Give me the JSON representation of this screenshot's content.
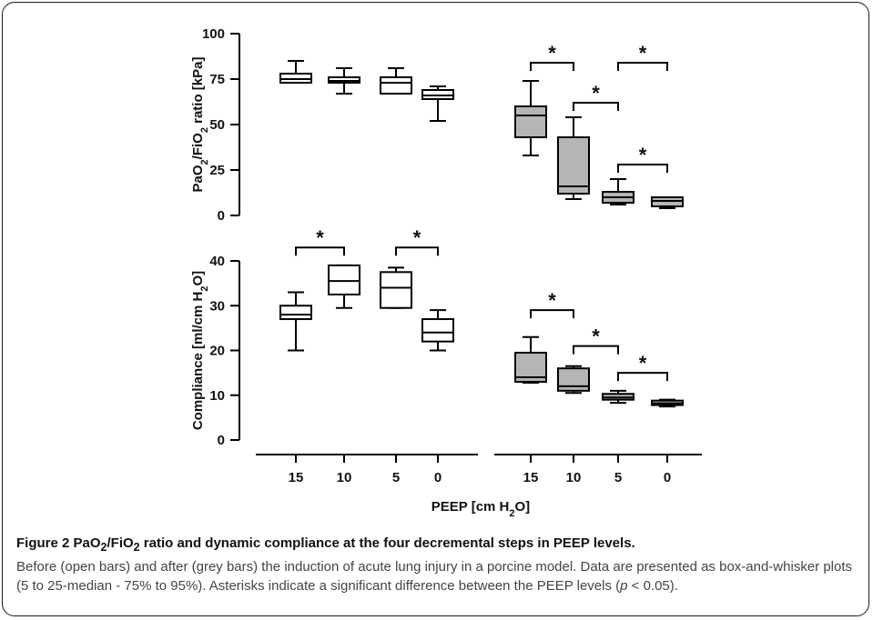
{
  "colors": {
    "open_box": "#ffffff",
    "grey_box": "#b5b5b5",
    "line": "#000000"
  },
  "caption": {
    "figure_label": "Figure 2",
    "title_pre": "PaO",
    "sub_2a": "2",
    "title_mid": "/FiO",
    "sub_2b": "2",
    "title_post": " ratio and dynamic compliance at the four decremental steps in PEEP levels.",
    "body_1": "Before (open bars) and after (grey bars) the induction of acute lung injury in a porcine model. Data are presented as box-and-whisker plots (5 to 25-median - 75% to 95%). Asterisks indicate a significant difference between the PEEP levels (",
    "body_p": "p",
    "body_2": " < 0.05)."
  },
  "chart_data": [
    {
      "type": "box",
      "ylabel": "PaO2/FiO2 ratio [kPa]",
      "ylabel_parts": [
        "PaO",
        "2",
        "/FiO",
        "2",
        " ratio [kPa]"
      ],
      "ylim": [
        0,
        100
      ],
      "yticks": [
        0,
        25,
        50,
        75,
        100
      ],
      "series": [
        {
          "group": "open",
          "categories": [
            "15",
            "10",
            "5",
            "0"
          ],
          "boxes": [
            {
              "whislo": 73,
              "q1": 73,
              "med": 75,
              "q3": 78,
              "whishi": 85
            },
            {
              "whislo": 67,
              "q1": 73,
              "med": 74,
              "q3": 76,
              "whishi": 81
            },
            {
              "whislo": 67,
              "q1": 67,
              "med": 73,
              "q3": 76,
              "whishi": 81
            },
            {
              "whislo": 52,
              "q1": 64,
              "med": 66,
              "q3": 69,
              "whishi": 71
            }
          ]
        },
        {
          "group": "grey",
          "categories": [
            "15",
            "10",
            "5",
            "0"
          ],
          "boxes": [
            {
              "whislo": 33,
              "q1": 43,
              "med": 55,
              "q3": 60,
              "whishi": 74
            },
            {
              "whislo": 9,
              "q1": 12,
              "med": 16,
              "q3": 43,
              "whishi": 54
            },
            {
              "whislo": 6,
              "q1": 7,
              "med": 10,
              "q3": 13,
              "whishi": 20
            },
            {
              "whislo": 4,
              "q1": 5,
              "med": 8,
              "q3": 10,
              "whishi": 10
            }
          ]
        }
      ],
      "significance": [
        {
          "from": 6,
          "to": 7,
          "y": 84,
          "label": "*"
        },
        {
          "from": 4,
          "to": 5,
          "y": 84,
          "label": "*"
        },
        {
          "from": 5,
          "to": 6,
          "y": 62,
          "label": "*"
        },
        {
          "from": 6,
          "to": 7,
          "y": 28,
          "label": "*"
        }
      ]
    },
    {
      "type": "box",
      "ylabel": "Compliance [ml/cm H2O]",
      "ylabel_parts": [
        "Compliance [ml/cm H",
        "2",
        "O]"
      ],
      "ylim": [
        0,
        40
      ],
      "yticks": [
        0,
        10,
        20,
        30,
        40
      ],
      "xlabel": "PEEP [cm H2O]",
      "xlabel_parts": [
        "PEEP [cm H",
        "2",
        "O]"
      ],
      "series": [
        {
          "group": "open",
          "categories": [
            "15",
            "10",
            "5",
            "0"
          ],
          "boxes": [
            {
              "whislo": 20,
              "q1": 27,
              "med": 28,
              "q3": 30,
              "whishi": 33
            },
            {
              "whislo": 29.5,
              "q1": 32.5,
              "med": 35.5,
              "q3": 39,
              "whishi": 39
            },
            {
              "whislo": 29.5,
              "q1": 29.5,
              "med": 34,
              "q3": 37.5,
              "whishi": 38.5
            },
            {
              "whislo": 20,
              "q1": 22,
              "med": 24,
              "q3": 27,
              "whishi": 29
            }
          ]
        },
        {
          "group": "grey",
          "categories": [
            "15",
            "10",
            "5",
            "0"
          ],
          "boxes": [
            {
              "whislo": 12.8,
              "q1": 13,
              "med": 14,
              "q3": 19.5,
              "whishi": 23
            },
            {
              "whislo": 10.5,
              "q1": 11,
              "med": 12,
              "q3": 16,
              "whishi": 16.5
            },
            {
              "whislo": 8.3,
              "q1": 9,
              "med": 9.5,
              "q3": 10.3,
              "whishi": 11
            },
            {
              "whislo": 7.5,
              "q1": 7.8,
              "med": 8.2,
              "q3": 8.8,
              "whishi": 9
            }
          ]
        }
      ],
      "significance": [
        {
          "from": 0,
          "to": 1,
          "y": 43,
          "label": "*"
        },
        {
          "from": 2,
          "to": 3,
          "y": 43,
          "label": "*"
        },
        {
          "from": 4,
          "to": 5,
          "y": 29,
          "label": "*"
        },
        {
          "from": 5,
          "to": 6,
          "y": 21,
          "label": "*"
        },
        {
          "from": 6,
          "to": 7,
          "y": 15,
          "label": "*"
        }
      ]
    }
  ]
}
